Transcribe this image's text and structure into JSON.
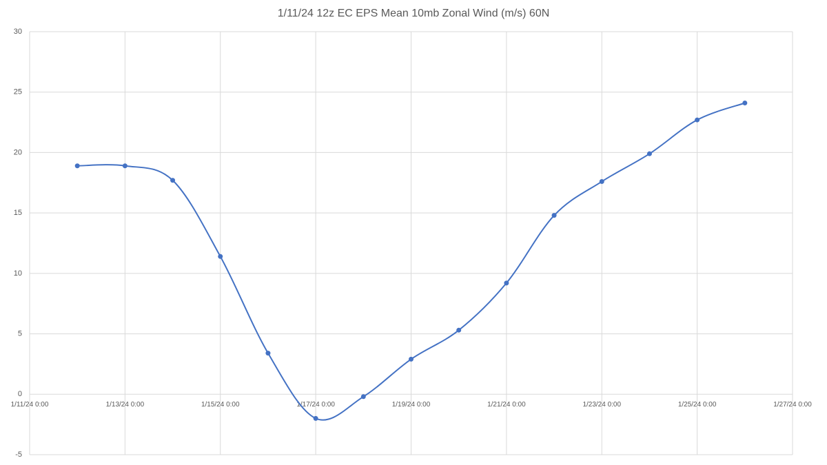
{
  "chart_data": {
    "type": "line",
    "title": "1/11/24 12z EC EPS Mean 10mb Zonal Wind (m/s) 60N",
    "x": [
      "1/12/24 0:00",
      "1/13/24 0:00",
      "1/14/24 0:00",
      "1/15/24 0:00",
      "1/16/24 0:00",
      "1/17/24 0:00",
      "1/18/24 0:00",
      "1/19/24 0:00",
      "1/20/24 0:00",
      "1/21/24 0:00",
      "1/22/24 0:00",
      "1/23/24 0:00",
      "1/24/24 0:00",
      "1/25/24 0:00",
      "1/26/24 0:00"
    ],
    "series": [
      {
        "color": "#4472c4",
        "values": [
          18.9,
          18.9,
          17.7,
          11.4,
          3.4,
          -2.0,
          -0.2,
          2.9,
          5.3,
          9.2,
          14.8,
          17.6,
          19.9,
          22.7,
          24.1
        ]
      }
    ],
    "xlim": [
      "1/11/24 0:00",
      "1/27/24 0:00"
    ],
    "xticks": [
      "1/11/24 0:00",
      "1/13/24 0:00",
      "1/15/24 0:00",
      "1/17/24 0:00",
      "1/19/24 0:00",
      "1/21/24 0:00",
      "1/23/24 0:00",
      "1/25/24 0:00",
      "1/27/24 0:00"
    ],
    "ylim": [
      -5,
      30
    ],
    "yticks": [
      -5,
      0,
      5,
      10,
      15,
      20,
      25,
      30
    ],
    "grid": true
  }
}
